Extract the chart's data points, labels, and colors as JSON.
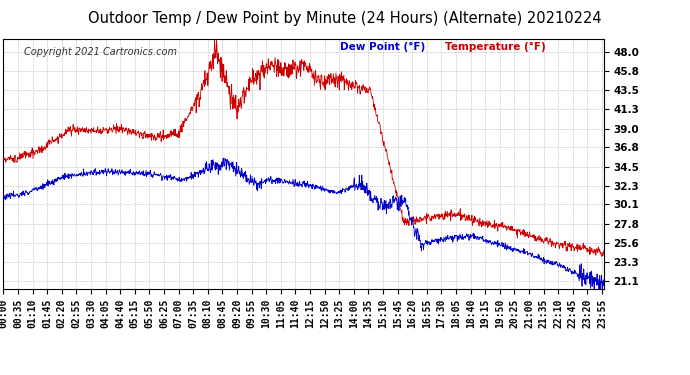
{
  "title": "Outdoor Temp / Dew Point by Minute (24 Hours) (Alternate) 20210224",
  "copyright": "Copyright 2021 Cartronics.com",
  "legend_dew": "Dew Point (°F)",
  "legend_temp": "Temperature (°F)",
  "ylabel_right_ticks": [
    48.0,
    45.8,
    43.5,
    41.3,
    39.0,
    36.8,
    34.5,
    32.3,
    30.1,
    27.8,
    25.6,
    23.3,
    21.1
  ],
  "ylim": [
    20.2,
    49.5
  ],
  "background_color": "#ffffff",
  "grid_color": "#bbbbbb",
  "temp_color": "#cc0000",
  "dew_color": "#0000cc",
  "title_fontsize": 10.5,
  "tick_fontsize": 7,
  "copyright_fontsize": 7
}
